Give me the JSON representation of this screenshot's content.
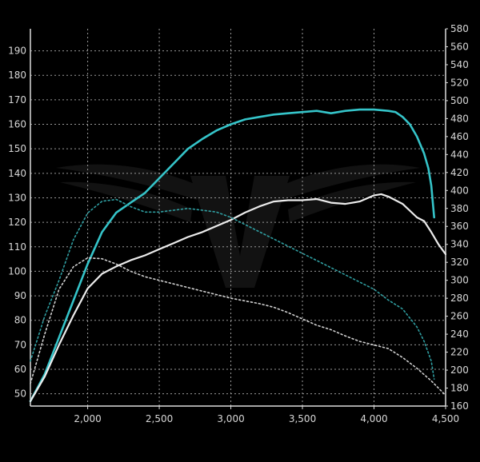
{
  "chart_data": {
    "type": "line",
    "title": "",
    "xlabel": "",
    "ylabel": "",
    "y2label": "",
    "grid": true,
    "xlim": [
      1600,
      4500
    ],
    "ylim": [
      45,
      199
    ],
    "y2lim": [
      160,
      580
    ],
    "x_ticks": [
      2000,
      2500,
      3000,
      3500,
      4000,
      4500
    ],
    "x_tick_labels": [
      "2,000",
      "2,500",
      "3,000",
      "3,500",
      "4,000",
      "4,500"
    ],
    "y_ticks": [
      50,
      60,
      70,
      80,
      90,
      100,
      110,
      120,
      130,
      140,
      150,
      160,
      170,
      180,
      190
    ],
    "y2_ticks": [
      160,
      180,
      200,
      220,
      240,
      260,
      280,
      300,
      320,
      340,
      360,
      380,
      400,
      420,
      440,
      460,
      480,
      500,
      520,
      540,
      560,
      580
    ],
    "colors": {
      "background": "#000000",
      "grid": "#9a9a9a",
      "axis": "#dcdcdc",
      "tuned_power": "#35c4c9",
      "stock_power": "#ececec",
      "tuned_torque": "#2f9ea1",
      "stock_torque": "#cfcfcf"
    },
    "series": [
      {
        "key": "tuned_power",
        "axis": "left",
        "style": "solid",
        "x": [
          1600,
          1700,
          1800,
          1900,
          2000,
          2100,
          2200,
          2300,
          2400,
          2500,
          2600,
          2700,
          2800,
          2900,
          3000,
          3100,
          3200,
          3300,
          3400,
          3500,
          3600,
          3700,
          3800,
          3900,
          4000,
          4100,
          4150,
          4200,
          4250,
          4300,
          4350,
          4380,
          4400,
          4420
        ],
        "values": [
          47,
          58,
          73,
          88,
          103,
          116,
          124,
          128,
          132,
          138,
          144,
          150,
          154,
          157.5,
          160,
          162,
          163,
          164,
          164.5,
          165,
          165.5,
          164.5,
          165.5,
          166,
          166,
          165.5,
          165,
          163,
          160,
          155,
          148,
          142,
          135,
          122
        ]
      },
      {
        "key": "stock_power",
        "axis": "left",
        "style": "solid",
        "x": [
          1600,
          1700,
          1800,
          1900,
          2000,
          2100,
          2200,
          2300,
          2400,
          2500,
          2600,
          2700,
          2800,
          2900,
          3000,
          3100,
          3200,
          3300,
          3400,
          3500,
          3600,
          3700,
          3800,
          3900,
          4000,
          4050,
          4100,
          4200,
          4300,
          4350,
          4400,
          4450,
          4500
        ],
        "values": [
          47,
          57,
          70,
          82,
          93,
          99,
          102,
          104.5,
          106.5,
          109,
          111.5,
          114,
          116,
          118.5,
          121,
          124,
          126.5,
          128.5,
          129,
          129,
          129.5,
          128,
          127.5,
          128.5,
          131,
          131.5,
          130.5,
          127.5,
          122,
          120.5,
          116,
          111,
          107
        ]
      },
      {
        "key": "tuned_torque",
        "axis": "right",
        "style": "dotted",
        "x": [
          1600,
          1700,
          1800,
          1900,
          2000,
          2100,
          2200,
          2300,
          2400,
          2500,
          2600,
          2700,
          2800,
          2900,
          3000,
          3100,
          3200,
          3300,
          3400,
          3500,
          3600,
          3700,
          3800,
          3900,
          4000,
          4100,
          4200,
          4300,
          4350,
          4400,
          4420
        ],
        "values": [
          210,
          260,
          300,
          345,
          375,
          388,
          390,
          382,
          376,
          376,
          378,
          380,
          378,
          376,
          370,
          362,
          354,
          346,
          338,
          330,
          322,
          314,
          306,
          298,
          290,
          278,
          268,
          248,
          232,
          210,
          190
        ]
      },
      {
        "key": "stock_torque",
        "axis": "right",
        "style": "dotted",
        "x": [
          1600,
          1700,
          1800,
          1900,
          2000,
          2100,
          2200,
          2300,
          2400,
          2500,
          2600,
          2700,
          2800,
          2900,
          3000,
          3100,
          3200,
          3300,
          3400,
          3500,
          3600,
          3700,
          3800,
          3900,
          4000,
          4100,
          4200,
          4300,
          4400,
          4500
        ],
        "values": [
          185,
          240,
          290,
          315,
          325,
          324,
          318,
          310,
          304,
          300,
          296,
          292,
          288,
          284,
          280,
          277,
          274,
          270,
          264,
          257,
          250,
          245,
          238,
          232,
          228,
          224,
          214,
          202,
          188,
          172
        ]
      }
    ]
  }
}
